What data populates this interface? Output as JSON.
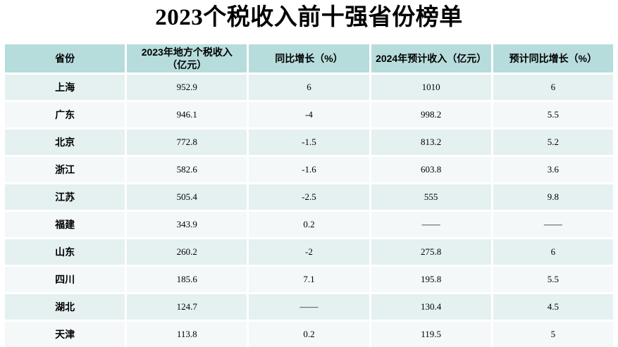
{
  "title": "2023个税收入前十强省份榜单",
  "colors": {
    "header_bg": "#b7dcdc",
    "row_odd_bg": "#e5f0f0",
    "row_even_bg": "#f4f8f9",
    "text": "#000000",
    "page_bg": "#ffffff"
  },
  "table": {
    "columns": [
      {
        "line1": "省份",
        "line2": ""
      },
      {
        "line1": "2023年地方个税收入",
        "line2": "（亿元）"
      },
      {
        "line1": "同比增长（%）",
        "line2": ""
      },
      {
        "line1": "2024年预计收入（亿元）",
        "line2": ""
      },
      {
        "line1": "预计同比增长（%）",
        "line2": ""
      }
    ],
    "rows": [
      [
        "上海",
        "952.9",
        "6",
        "1010",
        "6"
      ],
      [
        "广东",
        "946.1",
        "-4",
        "998.2",
        "5.5"
      ],
      [
        "北京",
        "772.8",
        "-1.5",
        "813.2",
        "5.2"
      ],
      [
        "浙江",
        "582.6",
        "-1.6",
        "603.8",
        "3.6"
      ],
      [
        "江苏",
        "505.4",
        "-2.5",
        "555",
        "9.8"
      ],
      [
        "福建",
        "343.9",
        "0.2",
        "——",
        "——"
      ],
      [
        "山东",
        "260.2",
        "-2",
        "275.8",
        "6"
      ],
      [
        "四川",
        "185.6",
        "7.1",
        "195.8",
        "5.5"
      ],
      [
        "湖北",
        "124.7",
        "——",
        "130.4",
        "4.5"
      ],
      [
        "天津",
        "113.8",
        "0.2",
        "119.5",
        "5"
      ]
    ]
  },
  "chart_data": {
    "type": "table",
    "title": "2023个税收入前十强省份榜单",
    "columns": [
      "省份",
      "2023年地方个税收入（亿元）",
      "同比增长（%）",
      "2024年预计收入（亿元）",
      "预计同比增长（%）"
    ],
    "rows": [
      {
        "province": "上海",
        "revenue_2023": 952.9,
        "yoy_growth_pct": 6,
        "forecast_2024": 1010,
        "forecast_growth_pct": 6
      },
      {
        "province": "广东",
        "revenue_2023": 946.1,
        "yoy_growth_pct": -4,
        "forecast_2024": 998.2,
        "forecast_growth_pct": 5.5
      },
      {
        "province": "北京",
        "revenue_2023": 772.8,
        "yoy_growth_pct": -1.5,
        "forecast_2024": 813.2,
        "forecast_growth_pct": 5.2
      },
      {
        "province": "浙江",
        "revenue_2023": 582.6,
        "yoy_growth_pct": -1.6,
        "forecast_2024": 603.8,
        "forecast_growth_pct": 3.6
      },
      {
        "province": "江苏",
        "revenue_2023": 505.4,
        "yoy_growth_pct": -2.5,
        "forecast_2024": 555,
        "forecast_growth_pct": 9.8
      },
      {
        "province": "福建",
        "revenue_2023": 343.9,
        "yoy_growth_pct": 0.2,
        "forecast_2024": null,
        "forecast_growth_pct": null
      },
      {
        "province": "山东",
        "revenue_2023": 260.2,
        "yoy_growth_pct": -2,
        "forecast_2024": 275.8,
        "forecast_growth_pct": 6
      },
      {
        "province": "四川",
        "revenue_2023": 185.6,
        "yoy_growth_pct": 7.1,
        "forecast_2024": 195.8,
        "forecast_growth_pct": 5.5
      },
      {
        "province": "湖北",
        "revenue_2023": 124.7,
        "yoy_growth_pct": null,
        "forecast_2024": 130.4,
        "forecast_growth_pct": 4.5
      },
      {
        "province": "天津",
        "revenue_2023": 113.8,
        "yoy_growth_pct": 0.2,
        "forecast_2024": 119.5,
        "forecast_growth_pct": 5
      }
    ],
    "missing_value_marker": "——"
  }
}
